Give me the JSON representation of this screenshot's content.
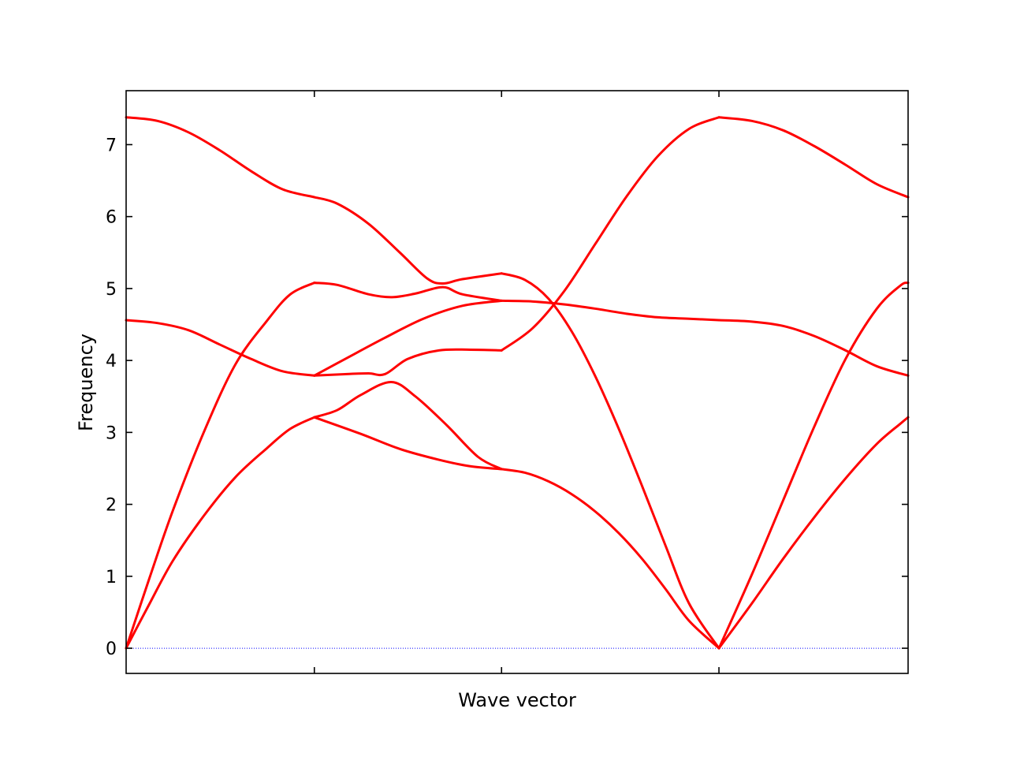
{
  "chart_data": {
    "type": "line",
    "title": "",
    "xlabel": "Wave vector",
    "ylabel": "Frequency",
    "ylim": [
      -0.35,
      7.75
    ],
    "xlim": [
      0,
      1
    ],
    "x_tick_positions": [
      0.2407,
      0.4801,
      0.7581
    ],
    "yticks": [
      0,
      1,
      2,
      3,
      4,
      5,
      6,
      7
    ],
    "tick_direction": "in",
    "grid": false,
    "line_color": "#ff0000",
    "zero_line": {
      "y": 0,
      "color": "#0000ff",
      "style": "dotted"
    },
    "series": [
      {
        "values": [
          [
            0,
            0
          ],
          [
            0.03,
            0.62
          ],
          [
            0.06,
            1.22
          ],
          [
            0.1,
            1.85
          ],
          [
            0.14,
            2.38
          ],
          [
            0.18,
            2.78
          ],
          [
            0.21,
            3.05
          ],
          [
            0.2407,
            3.21
          ]
        ]
      },
      {
        "values": [
          [
            0,
            0
          ],
          [
            0.03,
            0.98
          ],
          [
            0.06,
            1.92
          ],
          [
            0.1,
            3.02
          ],
          [
            0.14,
            3.95
          ],
          [
            0.18,
            4.55
          ],
          [
            0.21,
            4.92
          ],
          [
            0.2407,
            5.08
          ]
        ]
      },
      {
        "values": [
          [
            0,
            4.56
          ],
          [
            0.04,
            4.52
          ],
          [
            0.08,
            4.42
          ],
          [
            0.12,
            4.22
          ],
          [
            0.16,
            4.02
          ],
          [
            0.2,
            3.85
          ],
          [
            0.2407,
            3.79
          ]
        ]
      },
      {
        "values": [
          [
            0,
            7.38
          ],
          [
            0.04,
            7.33
          ],
          [
            0.08,
            7.17
          ],
          [
            0.12,
            6.92
          ],
          [
            0.16,
            6.63
          ],
          [
            0.2,
            6.38
          ],
          [
            0.2407,
            6.27
          ]
        ]
      },
      {
        "values": [
          [
            0.2407,
            3.21
          ],
          [
            0.3,
            2.98
          ],
          [
            0.35,
            2.77
          ],
          [
            0.4,
            2.62
          ],
          [
            0.44,
            2.53
          ],
          [
            0.4801,
            2.49
          ]
        ]
      },
      {
        "values": [
          [
            0.2407,
            3.21
          ],
          [
            0.27,
            3.31
          ],
          [
            0.3,
            3.52
          ],
          [
            0.339,
            3.7
          ],
          [
            0.37,
            3.5
          ],
          [
            0.41,
            3.1
          ],
          [
            0.45,
            2.66
          ],
          [
            0.4801,
            2.49
          ]
        ]
      },
      {
        "values": [
          [
            0.2407,
            3.79
          ],
          [
            0.28,
            3.81
          ],
          [
            0.31,
            3.82
          ],
          [
            0.331,
            3.81
          ],
          [
            0.36,
            4.02
          ],
          [
            0.4,
            4.14
          ],
          [
            0.44,
            4.15
          ],
          [
            0.4801,
            4.14
          ]
        ]
      },
      {
        "values": [
          [
            0.2407,
            3.79
          ],
          [
            0.28,
            4.02
          ],
          [
            0.33,
            4.31
          ],
          [
            0.38,
            4.58
          ],
          [
            0.43,
            4.76
          ],
          [
            0.4801,
            4.83
          ]
        ]
      },
      {
        "values": [
          [
            0.2407,
            5.08
          ],
          [
            0.27,
            5.05
          ],
          [
            0.31,
            4.92
          ],
          [
            0.34,
            4.88
          ],
          [
            0.37,
            4.93
          ],
          [
            0.405,
            5.02
          ],
          [
            0.43,
            4.92
          ],
          [
            0.4801,
            4.83
          ]
        ]
      },
      {
        "values": [
          [
            0.2407,
            6.27
          ],
          [
            0.27,
            6.18
          ],
          [
            0.31,
            5.9
          ],
          [
            0.35,
            5.5
          ],
          [
            0.385,
            5.14
          ],
          [
            0.405,
            5.07
          ],
          [
            0.43,
            5.13
          ],
          [
            0.4801,
            5.21
          ]
        ]
      },
      {
        "values": [
          [
            0.4801,
            4.83
          ],
          [
            0.52,
            4.82
          ],
          [
            0.56,
            4.78
          ],
          [
            0.6,
            4.72
          ],
          [
            0.64,
            4.65
          ],
          [
            0.68,
            4.6
          ],
          [
            0.72,
            4.58
          ],
          [
            0.7581,
            4.56
          ]
        ]
      },
      {
        "values": [
          [
            0.4801,
            4.14
          ],
          [
            0.52,
            4.45
          ],
          [
            0.56,
            4.96
          ],
          [
            0.6,
            5.62
          ],
          [
            0.64,
            6.28
          ],
          [
            0.68,
            6.84
          ],
          [
            0.72,
            7.22
          ],
          [
            0.7581,
            7.38
          ]
        ]
      },
      {
        "values": [
          [
            0.4801,
            5.21
          ],
          [
            0.51,
            5.12
          ],
          [
            0.54,
            4.86
          ],
          [
            0.57,
            4.4
          ],
          [
            0.6,
            3.78
          ],
          [
            0.63,
            3.05
          ],
          [
            0.66,
            2.25
          ],
          [
            0.69,
            1.42
          ],
          [
            0.72,
            0.62
          ],
          [
            0.7581,
            0
          ]
        ]
      },
      {
        "values": [
          [
            0.4801,
            2.49
          ],
          [
            0.51,
            2.44
          ],
          [
            0.54,
            2.32
          ],
          [
            0.57,
            2.14
          ],
          [
            0.6,
            1.9
          ],
          [
            0.63,
            1.6
          ],
          [
            0.66,
            1.24
          ],
          [
            0.69,
            0.82
          ],
          [
            0.72,
            0.38
          ],
          [
            0.7581,
            0
          ]
        ]
      },
      {
        "values": [
          [
            0.7581,
            0
          ],
          [
            0.8,
            0.62
          ],
          [
            0.84,
            1.24
          ],
          [
            0.88,
            1.82
          ],
          [
            0.92,
            2.36
          ],
          [
            0.96,
            2.84
          ],
          [
            0.99,
            3.12
          ],
          [
            1,
            3.21
          ]
        ]
      },
      {
        "values": [
          [
            0.7581,
            0
          ],
          [
            0.8,
            1.02
          ],
          [
            0.84,
            2.05
          ],
          [
            0.88,
            3.08
          ],
          [
            0.92,
            4.02
          ],
          [
            0.96,
            4.72
          ],
          [
            0.99,
            5.04
          ],
          [
            1,
            5.08
          ]
        ]
      },
      {
        "values": [
          [
            0.7581,
            4.56
          ],
          [
            0.8,
            4.54
          ],
          [
            0.84,
            4.48
          ],
          [
            0.88,
            4.34
          ],
          [
            0.92,
            4.14
          ],
          [
            0.96,
            3.92
          ],
          [
            1,
            3.79
          ]
        ]
      },
      {
        "values": [
          [
            0.7581,
            7.38
          ],
          [
            0.8,
            7.33
          ],
          [
            0.84,
            7.2
          ],
          [
            0.88,
            6.98
          ],
          [
            0.92,
            6.72
          ],
          [
            0.96,
            6.45
          ],
          [
            1,
            6.27
          ]
        ]
      }
    ]
  }
}
